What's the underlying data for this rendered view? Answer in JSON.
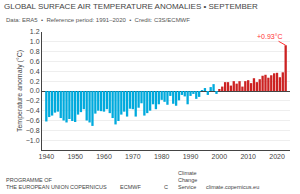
{
  "chart_data": {
    "type": "bar",
    "title": "GLOBAL SURFACE AIR TEMPERATURE ANOMALIES • SEPTEMBER",
    "subtitle": "Data: ERA5  •  Reference period: 1991–2020  •  Credit: C3S/ECMWF",
    "ylabel": "Temperature anomaly (°C)",
    "x": [
      1940,
      1941,
      1942,
      1943,
      1944,
      1945,
      1946,
      1947,
      1948,
      1949,
      1950,
      1951,
      1952,
      1953,
      1954,
      1955,
      1956,
      1957,
      1958,
      1959,
      1960,
      1961,
      1962,
      1963,
      1964,
      1965,
      1966,
      1967,
      1968,
      1969,
      1970,
      1971,
      1972,
      1973,
      1974,
      1975,
      1976,
      1977,
      1978,
      1979,
      1980,
      1981,
      1982,
      1983,
      1984,
      1985,
      1986,
      1987,
      1988,
      1989,
      1990,
      1991,
      1992,
      1993,
      1994,
      1995,
      1996,
      1997,
      1998,
      1999,
      2000,
      2001,
      2002,
      2003,
      2004,
      2005,
      2006,
      2007,
      2008,
      2009,
      2010,
      2011,
      2012,
      2013,
      2014,
      2015,
      2016,
      2017,
      2018,
      2019,
      2020,
      2021,
      2022,
      2023
    ],
    "values": [
      -0.62,
      -0.53,
      -0.5,
      -0.44,
      -0.42,
      -0.55,
      -0.6,
      -0.64,
      -0.57,
      -0.61,
      -0.63,
      -0.48,
      -0.43,
      -0.37,
      -0.6,
      -0.64,
      -0.71,
      -0.46,
      -0.4,
      -0.41,
      -0.42,
      -0.37,
      -0.45,
      -0.55,
      -0.68,
      -0.61,
      -0.48,
      -0.42,
      -0.52,
      -0.36,
      -0.37,
      -0.52,
      -0.34,
      -0.25,
      -0.5,
      -0.45,
      -0.4,
      -0.27,
      -0.37,
      -0.27,
      -0.18,
      -0.22,
      -0.28,
      -0.1,
      -0.26,
      -0.3,
      -0.19,
      -0.08,
      -0.11,
      -0.27,
      -0.1,
      -0.06,
      -0.16,
      -0.12,
      0.02,
      0.06,
      -0.08,
      0.08,
      0.14,
      -0.06,
      0.04,
      0.09,
      0.18,
      0.18,
      0.11,
      0.2,
      0.15,
      0.2,
      0.09,
      0.2,
      0.22,
      0.16,
      0.26,
      0.18,
      0.24,
      0.31,
      0.33,
      0.27,
      0.32,
      0.36,
      0.37,
      0.28,
      0.38,
      0.93
    ],
    "colors": [
      "#00aadd",
      "#00aadd",
      "#00aadd",
      "#00aadd",
      "#00aadd",
      "#00aadd",
      "#00aadd",
      "#00aadd",
      "#00aadd",
      "#00aadd",
      "#00aadd",
      "#00aadd",
      "#00aadd",
      "#00aadd",
      "#00aadd",
      "#00aadd",
      "#00aadd",
      "#00aadd",
      "#00aadd",
      "#00aadd",
      "#00aadd",
      "#00aadd",
      "#00aadd",
      "#00aadd",
      "#00aadd",
      "#00aadd",
      "#00aadd",
      "#00aadd",
      "#00aadd",
      "#00aadd",
      "#00aadd",
      "#00aadd",
      "#00aadd",
      "#00aadd",
      "#00aadd",
      "#00aadd",
      "#00aadd",
      "#00aadd",
      "#00aadd",
      "#00aadd",
      "#00aadd",
      "#00aadd",
      "#00aadd",
      "#00aadd",
      "#00aadd",
      "#00aadd",
      "#00aadd",
      "#00aadd",
      "#00aadd",
      "#00aadd",
      "#00aadd",
      "#00aadd",
      "#00aadd",
      "#00aadd",
      "#00aadd",
      "#00aadd",
      "#00aadd",
      "#00aadd",
      "#00aadd",
      "#00aadd",
      "#cc2222",
      "#cc2222",
      "#cc2222",
      "#cc2222",
      "#cc2222",
      "#cc2222",
      "#cc2222",
      "#cc2222",
      "#cc2222",
      "#cc2222",
      "#cc2222",
      "#cc2222",
      "#cc2222",
      "#cc2222",
      "#cc2222",
      "#cc2222",
      "#cc2222",
      "#cc2222",
      "#cc2222",
      "#cc2222",
      "#cc2222",
      "#cc2222",
      "#cc2222",
      "#cc2222"
    ],
    "xlim": [
      1938.5,
      2024.5
    ],
    "xticks": [
      1940,
      1950,
      1960,
      1970,
      1980,
      1990,
      2000,
      2010,
      2020
    ],
    "ylim": [
      -1.2,
      1.2
    ],
    "yticks": [
      {
        "value": -1.0,
        "label": "−1.0"
      },
      {
        "value": -0.8,
        "label": "−0.8"
      },
      {
        "value": -0.6,
        "label": "−0.6"
      },
      {
        "value": -0.4,
        "label": "−0.4"
      },
      {
        "value": -0.2,
        "label": "−0.2"
      },
      {
        "value": 0.0,
        "label": "0.0"
      },
      0.2,
      0.4,
      0.6,
      0.8,
      {
        "value": 1.0,
        "label": "1.0"
      },
      1.2
    ],
    "grid": "y",
    "annotations": [
      {
        "text": "+0.93°C",
        "x": 2023,
        "y": 0.93,
        "color": "#ff3333"
      },
      {
        "text": "PROGRAMME OF\nTHE EUROPEAN UNION"
      },
      {
        "text": "COPERNICUS"
      },
      {
        "text": "ECMWF"
      },
      {
        "text": "C"
      },
      {
        "text": "Climate\nChange\nService"
      },
      {
        "text": "climate.copernicus.eu"
      }
    ]
  }
}
